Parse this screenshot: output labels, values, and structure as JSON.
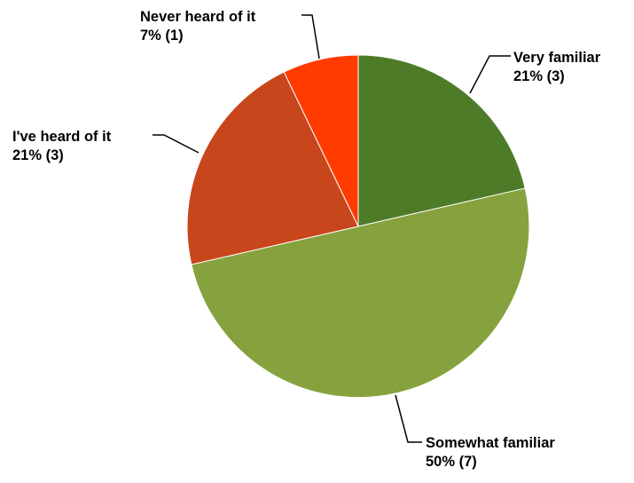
{
  "chart_data": {
    "type": "pie",
    "slices": [
      {
        "label": "Very familiar",
        "percent_label": "21% (3)",
        "value": 3,
        "percent": 21,
        "color": "#4e7b28"
      },
      {
        "label": "Somewhat familiar",
        "percent_label": "50% (7)",
        "value": 7,
        "percent": 50,
        "color": "#86a23e"
      },
      {
        "label": "I've heard of it",
        "percent_label": "21% (3)",
        "value": 3,
        "percent": 21,
        "color": "#c8461b"
      },
      {
        "label": "Never heard of it",
        "percent_label": "7% (1)",
        "value": 1,
        "percent": 7,
        "color": "#ff3b00"
      }
    ],
    "start_angle": "12 o'clock",
    "direction": "clockwise",
    "legend": "none"
  }
}
